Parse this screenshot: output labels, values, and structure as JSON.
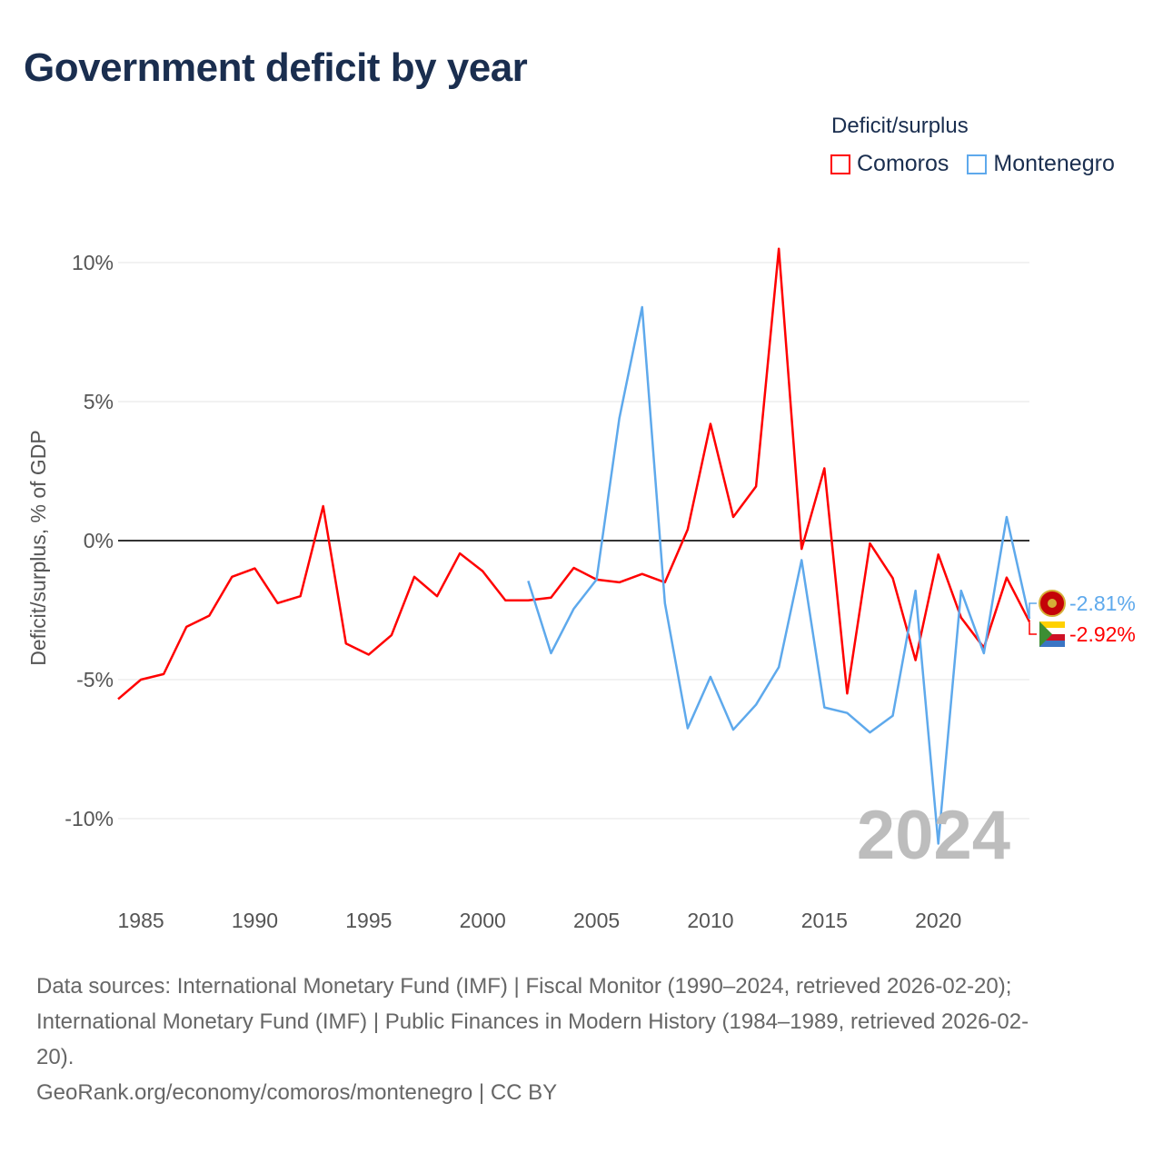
{
  "title": "Government deficit by year",
  "legend": {
    "title": "Deficit/surplus"
  },
  "footer": {
    "source_line1": "Data sources: International Monetary Fund (IMF) | Fiscal Monitor (1990–2024, retrieved 2026-02-20);",
    "source_line2": "International Monetary Fund (IMF) | Public Finances in Modern History (1984–1989, retrieved 2026-02-",
    "source_line3": "20).",
    "attribution": "GeoRank.org/economy/comoros/montenegro | CC BY"
  },
  "chart_data": {
    "type": "line",
    "title": "Government deficit by year",
    "xlabel": "",
    "ylabel": "Deficit/surplus, % of GDP",
    "xlim": [
      1984,
      2024
    ],
    "ylim": [
      -11.5,
      10.5
    ],
    "x_ticks": [
      1985,
      1990,
      1995,
      2000,
      2005,
      2010,
      2015,
      2020
    ],
    "x_tick_labels": [
      "1985",
      "1990",
      "1995",
      "2000",
      "2005",
      "2010",
      "2015",
      "2020"
    ],
    "y_ticks": [
      10,
      5,
      0,
      -5,
      -10
    ],
    "y_tick_labels": [
      "10%",
      "5%",
      "0%",
      "-5%",
      "-10%"
    ],
    "grid": true,
    "legend_position": "top-right",
    "year_watermark": "2024",
    "series": [
      {
        "name": "Comoros",
        "color": "#ff0000",
        "end_label": "-2.92%",
        "x": [
          1984,
          1985,
          1986,
          1987,
          1988,
          1989,
          1990,
          1991,
          1992,
          1993,
          1994,
          1995,
          1996,
          1997,
          1998,
          1999,
          2000,
          2001,
          2002,
          2003,
          2004,
          2005,
          2006,
          2007,
          2008,
          2009,
          2010,
          2011,
          2012,
          2013,
          2014,
          2015,
          2016,
          2017,
          2018,
          2019,
          2020,
          2021,
          2022,
          2023,
          2024
        ],
        "values": [
          -5.7,
          -5.0,
          -4.8,
          -3.1,
          -2.7,
          -1.3,
          -1.0,
          -2.25,
          -2.0,
          1.24,
          -3.7,
          -4.1,
          -3.4,
          -1.3,
          -2.0,
          -0.46,
          -1.1,
          -2.15,
          -2.15,
          -2.05,
          -0.98,
          -1.4,
          -1.5,
          -1.2,
          -1.5,
          0.4,
          4.2,
          0.85,
          1.95,
          10.5,
          -0.3,
          2.6,
          -5.5,
          -0.1,
          -1.35,
          -4.3,
          -0.5,
          -2.77,
          -3.85,
          -1.33,
          -2.92
        ]
      },
      {
        "name": "Montenegro",
        "color": "#5ea9ec",
        "end_label": "-2.81%",
        "x": [
          2002,
          2003,
          2004,
          2005,
          2006,
          2007,
          2008,
          2009,
          2010,
          2011,
          2012,
          2013,
          2014,
          2015,
          2016,
          2017,
          2018,
          2019,
          2020,
          2021,
          2022,
          2023,
          2024
        ],
        "values": [
          -1.45,
          -4.05,
          -2.45,
          -1.4,
          4.4,
          8.4,
          -2.25,
          -6.75,
          -4.9,
          -6.8,
          -5.9,
          -4.55,
          -0.7,
          -6.0,
          -6.2,
          -6.9,
          -6.3,
          -1.8,
          -10.9,
          -1.8,
          -4.05,
          0.85,
          -2.81
        ]
      }
    ]
  }
}
